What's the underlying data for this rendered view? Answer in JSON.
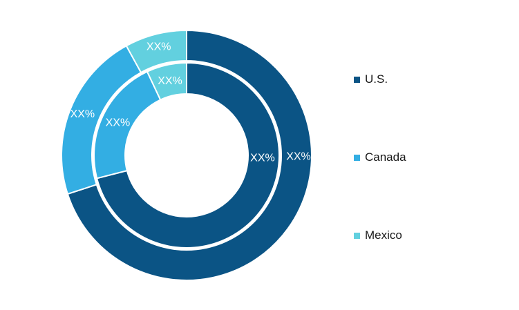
{
  "chart_data": {
    "type": "pie",
    "subtype": "double-donut",
    "categories": [
      "U.S.",
      "Canada",
      "Mexico"
    ],
    "colors": [
      "#0b5485",
      "#33aee3",
      "#62d0df"
    ],
    "series": [
      {
        "ring": "outer",
        "values": [
          70,
          22,
          8
        ],
        "labels": [
          "XX%",
          "XX%",
          "XX%"
        ]
      },
      {
        "ring": "inner",
        "values": [
          71,
          22,
          7
        ],
        "labels": [
          "XX%",
          "XX%",
          "XX%"
        ]
      }
    ],
    "legend_position": "right"
  }
}
